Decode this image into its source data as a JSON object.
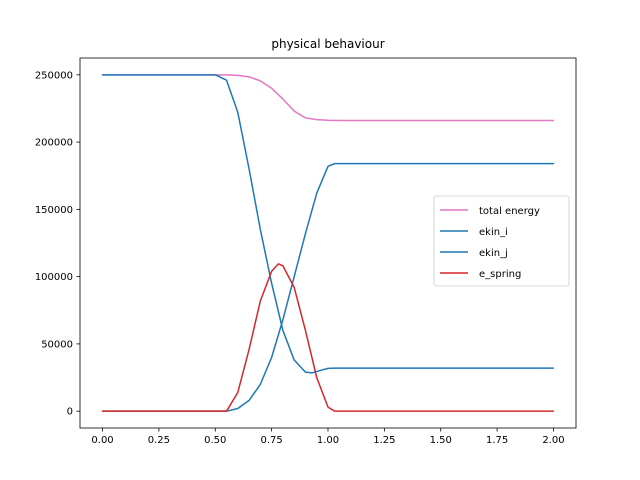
{
  "chart_data": {
    "type": "line",
    "title": "physical behaviour",
    "xlabel": "",
    "ylabel": "",
    "xlim": [
      -0.1,
      2.1
    ],
    "ylim": [
      -12500,
      262500
    ],
    "xticks": [
      0.0,
      0.25,
      0.5,
      0.75,
      1.0,
      1.25,
      1.5,
      1.75,
      2.0
    ],
    "xtick_labels": [
      "0.00",
      "0.25",
      "0.50",
      "0.75",
      "1.00",
      "1.25",
      "1.50",
      "1.75",
      "2.00"
    ],
    "yticks": [
      0,
      50000,
      100000,
      150000,
      200000,
      250000
    ],
    "ytick_labels": [
      "0",
      "50000",
      "100000",
      "150000",
      "200000",
      "250000"
    ],
    "grid": false,
    "legend_position": "center-right",
    "series": [
      {
        "name": "total energy",
        "color": "#e377c2",
        "x": [
          0.0,
          0.5,
          0.55,
          0.6,
          0.65,
          0.7,
          0.75,
          0.8,
          0.85,
          0.9,
          0.95,
          1.0,
          1.05,
          1.5,
          2.0
        ],
        "y": [
          250000,
          250000,
          250000,
          249600,
          248500,
          245500,
          240000,
          232000,
          223000,
          218000,
          216700,
          216200,
          216000,
          216000,
          216000
        ]
      },
      {
        "name": "ekin_i",
        "color": "#1f77b4",
        "x": [
          0.0,
          0.5,
          0.55,
          0.6,
          0.65,
          0.7,
          0.75,
          0.8,
          0.85,
          0.9,
          0.93,
          0.96,
          1.0,
          1.03,
          1.5,
          2.0
        ],
        "y": [
          250000,
          250000,
          246000,
          222000,
          180000,
          135000,
          95000,
          60000,
          38000,
          29000,
          28500,
          30000,
          31800,
          32000,
          32000,
          32000
        ]
      },
      {
        "name": "ekin_j",
        "color": "#1f77b4",
        "x": [
          0.0,
          0.55,
          0.6,
          0.65,
          0.7,
          0.75,
          0.8,
          0.85,
          0.9,
          0.95,
          1.0,
          1.03,
          1.5,
          2.0
        ],
        "y": [
          0,
          0,
          2000,
          8000,
          20000,
          40000,
          68000,
          100000,
          132000,
          162000,
          182000,
          184000,
          184000,
          184000
        ]
      },
      {
        "name": "e_spring",
        "color": "#d62728",
        "x": [
          0.0,
          0.55,
          0.6,
          0.65,
          0.7,
          0.75,
          0.78,
          0.8,
          0.85,
          0.9,
          0.95,
          1.0,
          1.03,
          1.5,
          2.0
        ],
        "y": [
          0,
          0,
          14000,
          46000,
          82000,
          104000,
          109500,
          108000,
          92000,
          60000,
          25000,
          3000,
          0,
          0,
          0
        ]
      }
    ]
  }
}
